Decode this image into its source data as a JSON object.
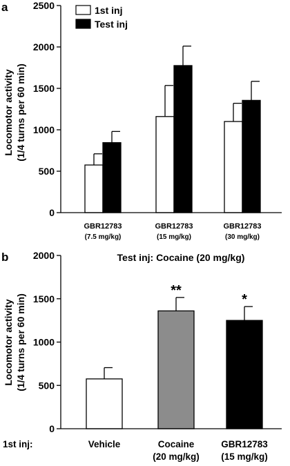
{
  "chart_data": [
    {
      "type": "bar",
      "panel": "a",
      "ylabel_line1": "Locomotor activity",
      "ylabel_line2": "(1/4 turns per 60 min)",
      "ylim": [
        0,
        2500
      ],
      "yticks": [
        "0",
        "500",
        "1000",
        "1500",
        "2000",
        "2500"
      ],
      "tick_values": [
        0,
        500,
        1000,
        1500,
        2000,
        2500
      ],
      "categories": [
        {
          "main": "GBR12783",
          "sub": "(7.5 mg/kg)"
        },
        {
          "main": "GBR12783",
          "sub": "(15 mg/kg)"
        },
        {
          "main": "GBR12783",
          "sub": "(30 mg/kg)"
        }
      ],
      "series": [
        {
          "name": "1st inj",
          "color": "#ffffff",
          "values": [
            575,
            1160,
            1100
          ],
          "errors": [
            135,
            375,
            220
          ]
        },
        {
          "name": "Test inj",
          "color": "#000000",
          "values": [
            845,
            1775,
            1355
          ],
          "errors": [
            135,
            235,
            230
          ]
        }
      ],
      "legend_position": "top-left",
      "grid": false
    },
    {
      "type": "bar",
      "panel": "b",
      "subtitle": "Test inj: Cocaine (20 mg/kg)",
      "ylabel_line1": "Locomotor activity",
      "ylabel_line2": "(1/4 turns per 60 min)",
      "ylim": [
        0,
        2000
      ],
      "yticks": [
        "0",
        "500",
        "1000",
        "1500",
        "2000"
      ],
      "tick_values": [
        0,
        500,
        1000,
        1500,
        2000
      ],
      "xlabel_prefix": "1st inj:",
      "categories": [
        {
          "main": "Vehicle",
          "sub": ""
        },
        {
          "main": "Cocaine",
          "sub": "(20 mg/kg)"
        },
        {
          "main": "GBR12783",
          "sub": "(15 mg/kg)"
        }
      ],
      "values": [
        575,
        1360,
        1250
      ],
      "errors": [
        130,
        155,
        160
      ],
      "colors": [
        "#ffffff",
        "#8c8c8c",
        "#000000"
      ],
      "significance": [
        "",
        "**",
        "*"
      ],
      "grid": false
    }
  ]
}
